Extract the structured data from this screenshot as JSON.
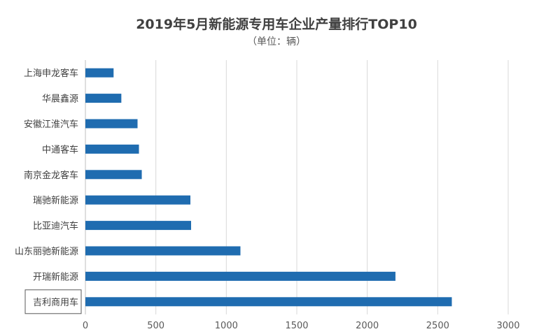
{
  "chart_data": {
    "type": "bar",
    "orientation": "horizontal",
    "title": "2019年5月新能源专用车企业产量排行TOP10",
    "subtitle": "（单位：辆）",
    "categories": [
      "上海申龙客车",
      "华晨鑫源",
      "安徽江淮汽车",
      "中通客车",
      "南京金龙客车",
      "瑞驰新能源",
      "比亚迪汽车",
      "山东丽驰新能源",
      "开瑞新能源",
      "吉利商用车"
    ],
    "values": [
      200,
      255,
      370,
      380,
      400,
      745,
      750,
      1100,
      2200,
      2600
    ],
    "xlim": [
      0,
      3000
    ],
    "xticks": [
      0,
      500,
      1000,
      1500,
      2000,
      2500,
      3000
    ],
    "grid": "vertical",
    "bar_color": "#1f6cb0",
    "highlighted_category": "吉利商用车"
  }
}
